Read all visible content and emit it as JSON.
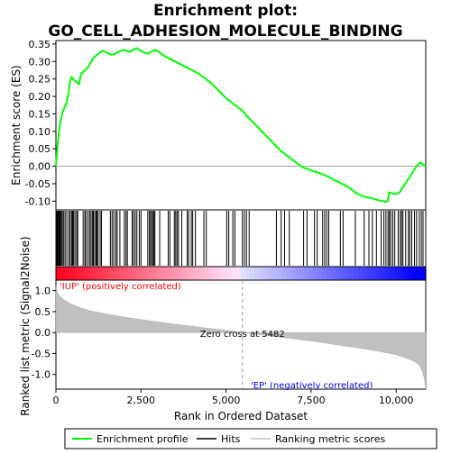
{
  "chart_data": {
    "type": "line",
    "title": "Enrichment plot:\nGO_CELL_ADHESION_MOLECULE_BINDING",
    "top_panel": {
      "ylabel": "Enrichment score (ES)",
      "ylim": [
        -0.125,
        0.36
      ],
      "yticks": [
        -0.1,
        -0.05,
        0.0,
        0.05,
        0.1,
        0.15,
        0.2,
        0.25,
        0.3,
        0.35
      ],
      "ytick_labels": [
        "-0.10",
        "-0.05",
        "0.00",
        "0.05",
        "0.10",
        "0.15",
        "0.20",
        "0.25",
        "0.30",
        "0.35"
      ],
      "series": [
        {
          "name": "Enrichment profile",
          "color": "#00ff00",
          "x": [
            0,
            40,
            80,
            120,
            160,
            200,
            260,
            320,
            380,
            420,
            460,
            500,
            560,
            620,
            680,
            740,
            800,
            860,
            920,
            980,
            1040,
            1100,
            1160,
            1220,
            1280,
            1340,
            1400,
            1500,
            1600,
            1700,
            1800,
            1900,
            2000,
            2100,
            2200,
            2300,
            2400,
            2500,
            2600,
            2700,
            2800,
            2900,
            3000,
            3100,
            3200,
            3300,
            3400,
            3500,
            3600,
            3700,
            3800,
            3900,
            4000,
            4100,
            4200,
            4400,
            4600,
            4800,
            5000,
            5200,
            5400,
            5482,
            5600,
            5800,
            6000,
            6200,
            6400,
            6600,
            6800,
            7000,
            7200,
            7300,
            7400,
            7500,
            7600,
            7700,
            7800,
            7900,
            8000,
            8100,
            8200,
            8300,
            8400,
            8500,
            8600,
            8700,
            8800,
            8900,
            9000,
            9100,
            9200,
            9300,
            9400,
            9500,
            9600,
            9700,
            9750,
            9800,
            9900,
            10000,
            10100,
            10200,
            10300,
            10400,
            10500,
            10600,
            10700,
            10800,
            10870
          ],
          "y": [
            0.0,
            0.05,
            0.09,
            0.12,
            0.14,
            0.155,
            0.17,
            0.185,
            0.215,
            0.245,
            0.255,
            0.25,
            0.245,
            0.24,
            0.235,
            0.265,
            0.27,
            0.275,
            0.28,
            0.29,
            0.3,
            0.31,
            0.315,
            0.32,
            0.325,
            0.33,
            0.33,
            0.325,
            0.32,
            0.32,
            0.325,
            0.33,
            0.333,
            0.33,
            0.328,
            0.335,
            0.338,
            0.33,
            0.325,
            0.322,
            0.328,
            0.333,
            0.33,
            0.322,
            0.315,
            0.31,
            0.305,
            0.3,
            0.295,
            0.29,
            0.285,
            0.28,
            0.275,
            0.27,
            0.265,
            0.25,
            0.235,
            0.215,
            0.195,
            0.18,
            0.165,
            0.16,
            0.145,
            0.125,
            0.105,
            0.085,
            0.065,
            0.045,
            0.03,
            0.015,
            0.0,
            -0.005,
            -0.008,
            -0.012,
            -0.015,
            -0.018,
            -0.022,
            -0.025,
            -0.03,
            -0.035,
            -0.04,
            -0.045,
            -0.05,
            -0.055,
            -0.06,
            -0.068,
            -0.075,
            -0.08,
            -0.085,
            -0.088,
            -0.09,
            -0.092,
            -0.095,
            -0.098,
            -0.1,
            -0.102,
            -0.1,
            -0.075,
            -0.078,
            -0.08,
            -0.075,
            -0.06,
            -0.045,
            -0.03,
            -0.015,
            0.0,
            0.01,
            0.005,
            0.0
          ]
        }
      ]
    },
    "hits_panel": {
      "series_name": "Hits",
      "positions": [
        10,
        30,
        50,
        70,
        90,
        110,
        130,
        160,
        190,
        230,
        270,
        320,
        380,
        420,
        460,
        490,
        520,
        560,
        610,
        640,
        800,
        850,
        880,
        940,
        990,
        1030,
        1070,
        1100,
        1140,
        1180,
        1210,
        1240,
        1300,
        1340,
        1600,
        1650,
        1700,
        1760,
        1800,
        1880,
        2010,
        2060,
        2100,
        2240,
        2280,
        2330,
        2380,
        2450,
        2500,
        2700,
        2750,
        2780,
        2820,
        2860,
        2880,
        2910,
        3050,
        3300,
        3350,
        3480,
        3520,
        3560,
        3600,
        3700,
        3860,
        3900,
        3980,
        4020,
        4100,
        4350,
        4420,
        5020,
        5080,
        5200,
        5260,
        5480,
        5540,
        5600,
        5680,
        6480,
        6620,
        6720,
        6860,
        7280,
        7380,
        7600,
        7680,
        7840,
        7900,
        7960,
        8020,
        8360,
        8440,
        8800,
        9060,
        9200,
        9300,
        9420,
        9560,
        9640,
        9700,
        9760,
        9800,
        9840,
        9900,
        9960,
        10060,
        10120,
        10160,
        10200,
        10280,
        10360,
        10400,
        10460,
        10540,
        10600,
        10680,
        10740,
        10790
      ]
    },
    "metric_panel": {
      "ylabel": "Ranked list metric (Signal2Noise)",
      "xlabel": "Rank in Ordered Dataset",
      "legend_name": "Ranking metric scores",
      "ylim": [
        -1.35,
        1.25
      ],
      "yticks": [
        -1.0,
        -0.5,
        0.0,
        0.5,
        1.0
      ],
      "ytick_labels": [
        "-1.0",
        "-0.5",
        "0.0",
        "0.5",
        "1.0"
      ],
      "xlim": [
        0,
        10870
      ],
      "xticks": [
        0,
        2500,
        5000,
        7500,
        10000
      ],
      "xtick_labels": [
        "0",
        "2,500",
        "5,000",
        "7,500",
        "10,000"
      ],
      "metric_x": [
        0,
        50,
        100,
        200,
        400,
        700,
        1000,
        1500,
        2000,
        2500,
        3000,
        3500,
        4000,
        4500,
        5000,
        5482,
        6000,
        6500,
        7000,
        7500,
        8000,
        8500,
        9000,
        9500,
        10000,
        10200,
        10400,
        10600,
        10700,
        10780,
        10830,
        10870
      ],
      "metric_y": [
        1.1,
        0.95,
        0.88,
        0.8,
        0.7,
        0.6,
        0.52,
        0.44,
        0.37,
        0.31,
        0.25,
        0.2,
        0.15,
        0.1,
        0.05,
        0.0,
        -0.05,
        -0.1,
        -0.15,
        -0.2,
        -0.26,
        -0.32,
        -0.38,
        -0.45,
        -0.53,
        -0.58,
        -0.64,
        -0.72,
        -0.8,
        -0.95,
        -1.1,
        -1.35
      ],
      "zero_cross_rank": 5482,
      "zero_cross_label": "Zero cross at 5482",
      "pos_label": "'IUP' (positively correlated)",
      "neg_label": "'EP' (negatively correlated)",
      "pos_color": "#ff0000",
      "neg_color": "#0000ff"
    },
    "legend": {
      "entries": [
        {
          "label": "Enrichment profile",
          "color": "#00ff00"
        },
        {
          "label": "Hits",
          "color": "#000000"
        },
        {
          "label": "Ranking metric scores",
          "color": "#c0c0c0"
        }
      ],
      "placement": "bottom"
    }
  }
}
